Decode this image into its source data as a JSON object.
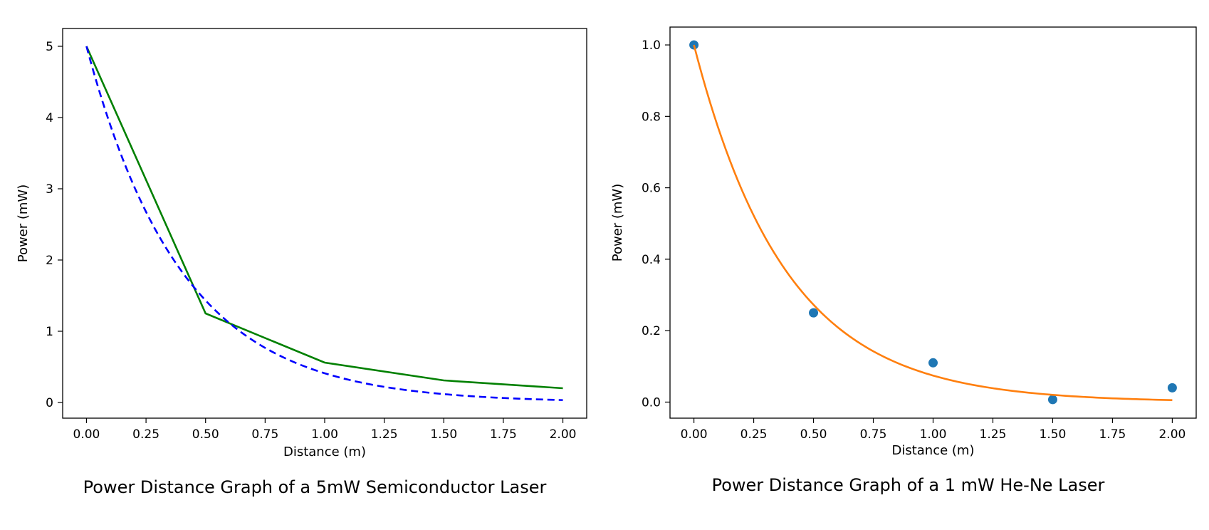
{
  "chart_data": [
    {
      "type": "line",
      "title": "Power Distance Graph of a 5mW Semiconductor Laser",
      "xlabel": "Distance (m)",
      "ylabel": "Power (mW)",
      "xlim": [
        -0.1,
        2.1
      ],
      "ylim": [
        -0.22,
        5.25
      ],
      "xticks": [
        "0.00",
        "0.25",
        "0.50",
        "0.75",
        "1.00",
        "1.25",
        "1.50",
        "1.75",
        "2.00"
      ],
      "yticks": [
        "0",
        "1",
        "2",
        "3",
        "4",
        "5"
      ],
      "grid": false,
      "legend": false,
      "series": [
        {
          "style": "solid",
          "color": "#008000",
          "x": [
            0,
            0.5,
            1.0,
            1.5,
            2.0
          ],
          "y": [
            5.0,
            1.25,
            0.56,
            0.31,
            0.2
          ]
        },
        {
          "style": "dashed",
          "color": "#0000ff",
          "fit": {
            "a": 5.0,
            "k": 2.5
          },
          "x_range": [
            0,
            2.0
          ]
        }
      ]
    },
    {
      "type": "scatter",
      "title": "Power Distance Graph of a 1 mW He-Ne Laser",
      "xlabel": "Distance (m)",
      "ylabel": "Power (mW)",
      "xlim": [
        -0.1,
        2.1
      ],
      "ylim": [
        -0.045,
        1.05
      ],
      "xticks": [
        "0.00",
        "0.25",
        "0.50",
        "0.75",
        "1.00",
        "1.25",
        "1.50",
        "1.75",
        "2.00"
      ],
      "yticks": [
        "0.0",
        "0.2",
        "0.4",
        "0.6",
        "0.8",
        "1.0"
      ],
      "grid": false,
      "legend": false,
      "series": [
        {
          "style": "points",
          "color": "#1f77b4",
          "x": [
            0,
            0.5,
            1.0,
            1.5,
            2.0
          ],
          "y": [
            1.0,
            0.25,
            0.11,
            0.007,
            0.04
          ]
        },
        {
          "style": "solid",
          "color": "#ff7f0e",
          "fit": {
            "a": 1.0,
            "k": 2.6
          },
          "x_range": [
            0,
            2.0
          ]
        }
      ]
    }
  ]
}
